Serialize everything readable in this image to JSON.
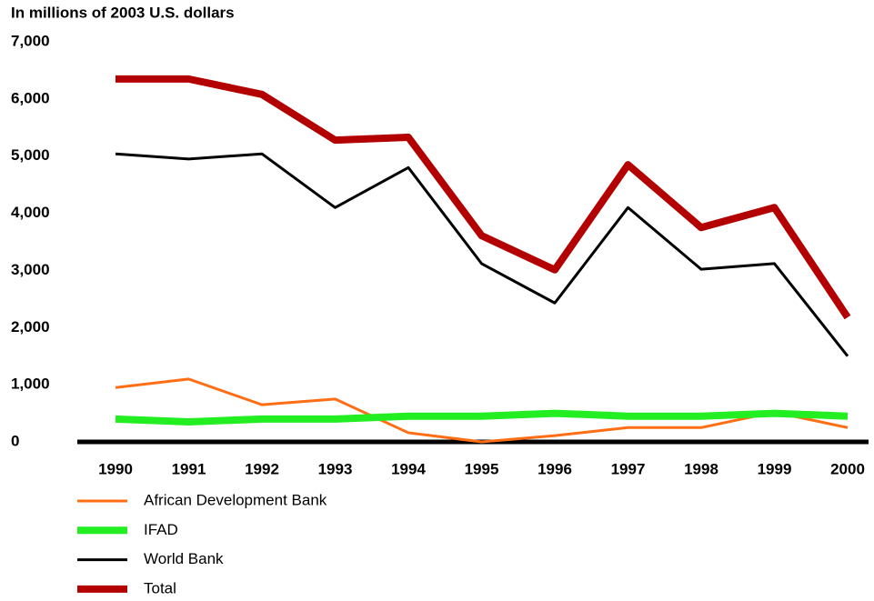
{
  "chart_data": {
    "type": "line",
    "title": "In millions of 2003 U.S. dollars",
    "categories": [
      "1990",
      "1991",
      "1992",
      "1993",
      "1994",
      "1995",
      "1996",
      "1997",
      "1998",
      "1999",
      "2000"
    ],
    "series": [
      {
        "name": "African Development Bank",
        "color": "#ff6e14",
        "width": 3,
        "values": [
          950,
          1100,
          650,
          750,
          160,
          0,
          110,
          250,
          250,
          520,
          250
        ]
      },
      {
        "name": "IFAD",
        "color": "#22ee22",
        "width": 8,
        "values": [
          400,
          350,
          400,
          400,
          450,
          450,
          500,
          450,
          450,
          500,
          450
        ]
      },
      {
        "name": "World Bank",
        "color": "#000000",
        "width": 3,
        "values": [
          5040,
          4950,
          5040,
          4100,
          4800,
          3120,
          2430,
          4100,
          3020,
          3120,
          1500
        ]
      },
      {
        "name": "Total",
        "color": "#b30000",
        "width": 8,
        "values": [
          6350,
          6350,
          6080,
          5280,
          5330,
          3610,
          3010,
          4850,
          3750,
          4100,
          2180
        ]
      }
    ],
    "ylim": [
      0,
      7000
    ],
    "yticks": [
      0,
      {
        "value": 1000,
        "label": "1,000"
      },
      {
        "value": 2000,
        "label": "2,000"
      },
      {
        "value": 3000,
        "label": "3,000"
      },
      {
        "value": 4000,
        "label": "4,000"
      },
      {
        "value": 5000,
        "label": "5,000"
      },
      {
        "value": 6000,
        "label": "6,000"
      },
      {
        "value": 7000,
        "label": "7,000"
      }
    ],
    "grid": false,
    "legend": "bottom"
  }
}
